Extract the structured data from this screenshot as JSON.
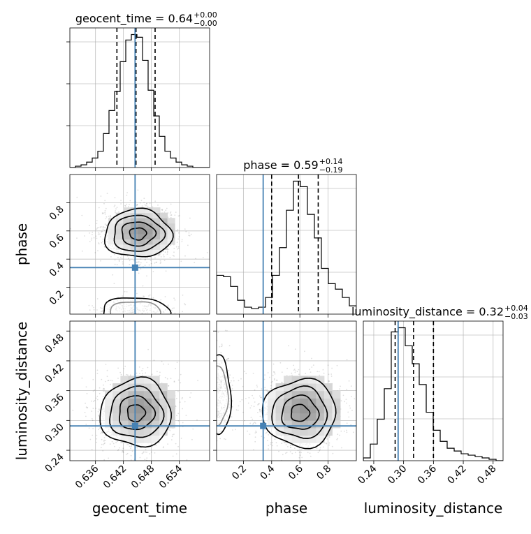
{
  "chart_data": {
    "type": "corner",
    "parameters": [
      "geocent_time",
      "phase",
      "luminosity_distance"
    ],
    "truths": {
      "geocent_time": 0.6445,
      "phase": 0.34,
      "luminosity_distance": 0.289
    },
    "truth_color": "#4682b4",
    "axes": {
      "geocent_time": {
        "xlim": [
          0.6305,
          0.6605
        ],
        "ticks": [
          0.636,
          0.642,
          0.648,
          0.654
        ],
        "tick_labels": [
          "0.636",
          "0.642",
          "0.648",
          "0.654"
        ]
      },
      "phase": {
        "xlim": [
          0.01,
          1.0
        ],
        "ticks": [
          0.2,
          0.4,
          0.6,
          0.8
        ],
        "tick_labels": [
          "0.2",
          "0.4",
          "0.6",
          "0.8"
        ]
      },
      "luminosity_distance": {
        "xlim": [
          0.219,
          0.5
        ],
        "ticks": [
          0.24,
          0.3,
          0.36,
          0.42,
          0.48
        ],
        "tick_labels": [
          "0.24",
          "0.30",
          "0.36",
          "0.42",
          "0.48"
        ]
      }
    },
    "histograms": [
      {
        "parameter": "geocent_time",
        "edges": [
          0.6305,
          0.6317,
          0.6329,
          0.6341,
          0.6353,
          0.6365,
          0.6377,
          0.6389,
          0.6401,
          0.6413,
          0.6425,
          0.6437,
          0.6449,
          0.6461,
          0.6473,
          0.6485,
          0.6497,
          0.6509,
          0.6521,
          0.6533,
          0.6545,
          0.6557,
          0.6569,
          0.6581,
          0.6593,
          0.6605
        ],
        "heights": [
          0.0,
          0.01,
          0.02,
          0.04,
          0.07,
          0.12,
          0.25,
          0.42,
          0.56,
          0.78,
          0.94,
          0.98,
          0.96,
          0.79,
          0.57,
          0.38,
          0.23,
          0.12,
          0.07,
          0.04,
          0.02,
          0.01,
          0.0,
          0.0,
          0.0
        ],
        "quantiles": [
          0.6406,
          0.6447,
          0.6488
        ],
        "title": "geocent_time = 0.64",
        "title_sup": "+0.00",
        "title_sub": "−0.00"
      },
      {
        "parameter": "phase",
        "edges": [
          0.01,
          0.0595,
          0.109,
          0.1585,
          0.208,
          0.2575,
          0.307,
          0.3565,
          0.406,
          0.4555,
          0.505,
          0.5545,
          0.604,
          0.6535,
          0.703,
          0.7525,
          0.802,
          0.8515,
          0.901,
          0.9505,
          1.0
        ],
        "heights": [
          0.28,
          0.27,
          0.2,
          0.1,
          0.05,
          0.04,
          0.05,
          0.12,
          0.28,
          0.48,
          0.75,
          0.96,
          0.92,
          0.72,
          0.55,
          0.33,
          0.22,
          0.18,
          0.12,
          0.06
        ],
        "quantiles": [
          0.4,
          0.59,
          0.73
        ],
        "title": "phase = 0.59",
        "title_sup": "+0.14",
        "title_sub": "−0.19"
      },
      {
        "parameter": "luminosity_distance",
        "edges": [
          0.219,
          0.2331,
          0.2471,
          0.2612,
          0.2752,
          0.2893,
          0.3033,
          0.3174,
          0.3314,
          0.3455,
          0.3595,
          0.3736,
          0.3876,
          0.4017,
          0.4157,
          0.4298,
          0.4438,
          0.4579,
          0.4719,
          0.486,
          0.5
        ],
        "heights": [
          0.02,
          0.12,
          0.3,
          0.52,
          0.93,
          0.96,
          0.83,
          0.7,
          0.55,
          0.35,
          0.22,
          0.14,
          0.09,
          0.07,
          0.05,
          0.04,
          0.03,
          0.02,
          0.01,
          0.0
        ],
        "quantiles": [
          0.283,
          0.32,
          0.36
        ],
        "title": "luminosity_distance = 0.32",
        "title_sup": "+0.04",
        "title_sub": "−0.03"
      }
    ],
    "density_2d": [
      {
        "x": "geocent_time",
        "y": "phase",
        "yaxis": {
          "ylim": [
            0.01,
            1.0
          ],
          "ticks": [
            0.2,
            0.4,
            0.6,
            0.8
          ],
          "tick_labels": [
            "0.2",
            "0.4",
            "0.6",
            "0.8"
          ]
        },
        "modes": [
          {
            "cx": 0.6451,
            "cy": 0.58,
            "sx": 0.0036,
            "sy": 0.085,
            "weight": 1.0
          },
          {
            "cx": 0.6445,
            "cy": 0.02,
            "sx": 0.0036,
            "sy": 0.055,
            "weight": 0.35
          }
        ]
      },
      {
        "x": "geocent_time",
        "y": "luminosity_distance",
        "yaxis": {
          "ylim": [
            0.219,
            0.5
          ],
          "ticks": [
            0.24,
            0.3,
            0.36,
            0.42,
            0.48
          ],
          "tick_labels": [
            "0.24",
            "0.30",
            "0.36",
            "0.42",
            "0.48"
          ]
        },
        "modes": [
          {
            "cx": 0.6447,
            "cy": 0.315,
            "sx": 0.0038,
            "sy": 0.034,
            "weight": 1.0
          }
        ]
      },
      {
        "x": "phase",
        "y": "luminosity_distance",
        "yaxis": {
          "ylim": [
            0.219,
            0.5
          ],
          "ticks": [
            0.24,
            0.3,
            0.36,
            0.42,
            0.48
          ],
          "tick_labels": [
            "0.24",
            "0.30",
            "0.36",
            "0.42",
            "0.48"
          ]
        },
        "modes": [
          {
            "cx": 0.6,
            "cy": 0.315,
            "sx": 0.13,
            "sy": 0.034,
            "weight": 1.0
          },
          {
            "cx": 0.02,
            "cy": 0.35,
            "sx": 0.045,
            "sy": 0.04,
            "weight": 0.35
          }
        ]
      }
    ],
    "axis_labels": {
      "geocent_time": "geocent_time",
      "phase": "phase",
      "luminosity_distance": "luminosity_distance"
    },
    "grid": true
  }
}
